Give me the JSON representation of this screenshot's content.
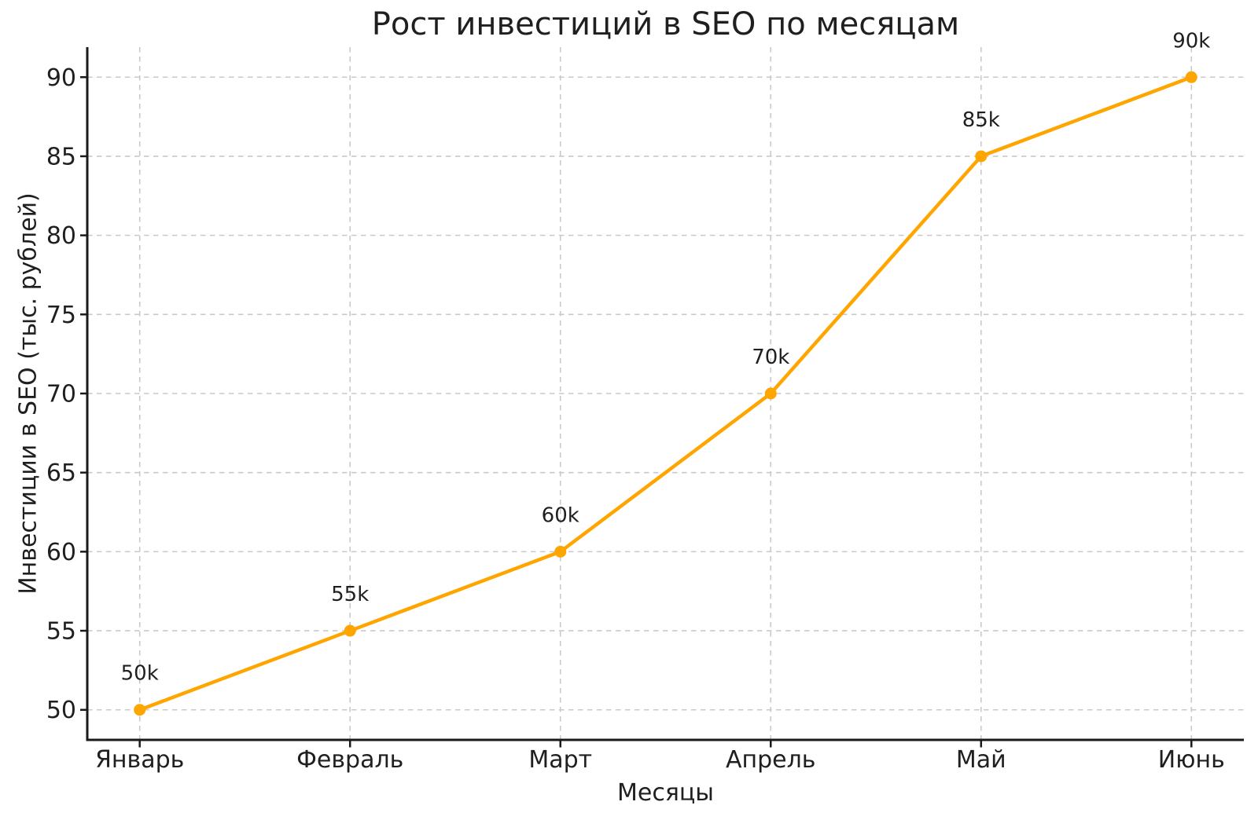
{
  "chart_data": {
    "type": "line",
    "title": "Рост инвестиций в SEO по месяцам",
    "xlabel": "Месяцы",
    "ylabel": "Инвестиции в SEO (тыс. рублей)",
    "categories": [
      "Январь",
      "Февраль",
      "Март",
      "Апрель",
      "Май",
      "Июнь"
    ],
    "series": [
      {
        "name": "Инвестиции в SEO",
        "values": [
          50,
          55,
          60,
          70,
          85,
          90
        ],
        "point_labels": [
          "50k",
          "55k",
          "60k",
          "70k",
          "85k",
          "90k"
        ]
      }
    ],
    "yticks": [
      50,
      55,
      60,
      65,
      70,
      75,
      80,
      85,
      90
    ],
    "ylim": [
      48.1,
      91.9
    ],
    "grid": true,
    "grid_style": "dashed",
    "legend_position": "none",
    "colors": {
      "line": "#FFA500",
      "marker": "#FFA500",
      "grid": "#c9c9c9",
      "text": "#1f1f1f",
      "spine": "#1a1a1a"
    }
  }
}
